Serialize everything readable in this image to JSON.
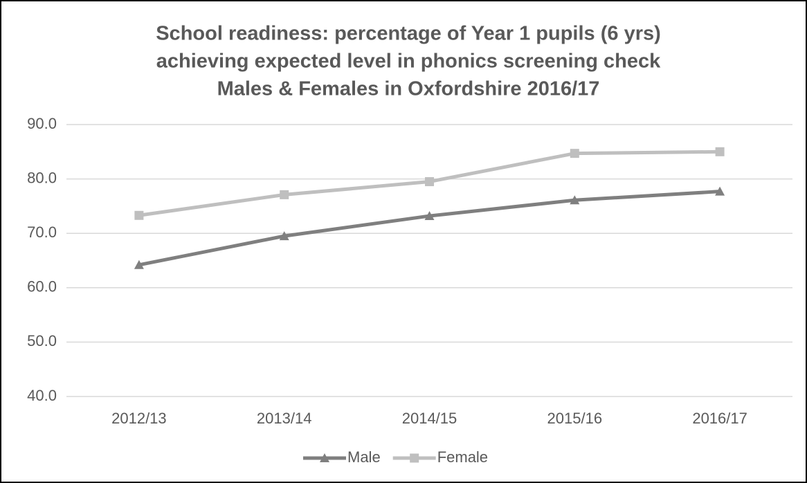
{
  "chart_data": {
    "type": "line",
    "title": [
      "School readiness: percentage of Year 1 pupils (6 yrs)",
      "achieving expected level in phonics screening check",
      "Males & Females in Oxfordshire 2016/17"
    ],
    "categories": [
      "2012/13",
      "2013/14",
      "2014/15",
      "2015/16",
      "2016/17"
    ],
    "series": [
      {
        "name": "Male",
        "color": "#7f7f7f",
        "marker": "triangle",
        "values": [
          64.2,
          69.5,
          73.2,
          76.1,
          77.7
        ]
      },
      {
        "name": "Female",
        "color": "#bfbfbf",
        "marker": "square",
        "values": [
          73.3,
          77.1,
          79.5,
          84.7,
          85.0
        ]
      }
    ],
    "ylim": [
      40,
      90
    ],
    "yticks": [
      {
        "value": 40,
        "label": "40.0"
      },
      {
        "value": 50,
        "label": "50.0"
      },
      {
        "value": 60,
        "label": "60.0"
      },
      {
        "value": 70,
        "label": "70.0"
      },
      {
        "value": 80,
        "label": "80.0"
      },
      {
        "value": 90,
        "label": "90.0"
      }
    ],
    "grid": true,
    "legend": "bottom"
  }
}
